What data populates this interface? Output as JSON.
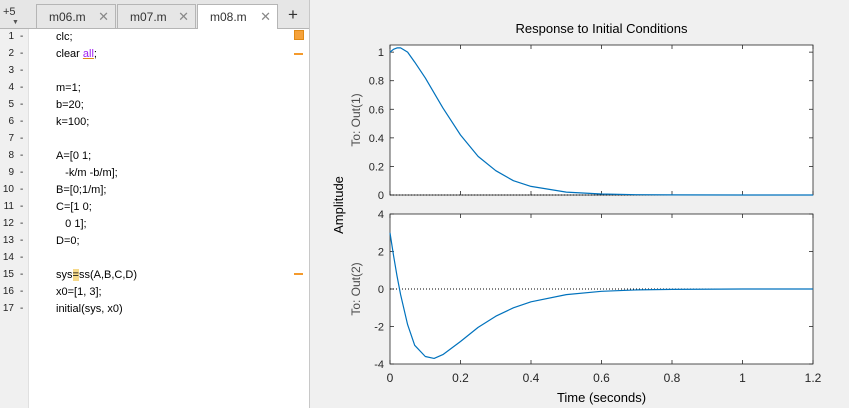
{
  "editor": {
    "overflow_tab": "+5",
    "tabs": [
      {
        "label": "m06.m",
        "active": false
      },
      {
        "label": "m07.m",
        "active": false
      },
      {
        "label": "m08.m",
        "active": true
      }
    ],
    "add_tab": "+",
    "close_glyph": "✕",
    "lines": [
      {
        "n": "1",
        "code": "clc;"
      },
      {
        "n": "2",
        "code": "clear all;"
      },
      {
        "n": "3",
        "code": ""
      },
      {
        "n": "4",
        "code": "m=1;"
      },
      {
        "n": "5",
        "code": "b=20;"
      },
      {
        "n": "6",
        "code": "k=100;"
      },
      {
        "n": "7",
        "code": ""
      },
      {
        "n": "8",
        "code": "A=[0 1;"
      },
      {
        "n": "9",
        "code": "   -k/m -b/m];"
      },
      {
        "n": "10",
        "code": "B=[0;1/m];"
      },
      {
        "n": "11",
        "code": "C=[1 0;"
      },
      {
        "n": "12",
        "code": "   0 1];"
      },
      {
        "n": "13",
        "code": "D=0;"
      },
      {
        "n": "14",
        "code": ""
      },
      {
        "n": "15",
        "code": "sys=ss(A,B,C,D)"
      },
      {
        "n": "16",
        "code": "x0=[1, 3];"
      },
      {
        "n": "17",
        "code": "initial(sys, x0)"
      }
    ],
    "line_dash": "-",
    "warning_color": "#f49a2c"
  },
  "figure": {
    "title": "Response to Initial Conditions",
    "ylabel": "Amplitude",
    "xlabel": "Time (seconds)",
    "line_color": "#0072bd"
  },
  "chart_data": {
    "type": "line",
    "title": "Response to Initial Conditions",
    "xlabel": "Time (seconds)",
    "ylabel": "Amplitude",
    "x_ticks": [
      "0",
      "0.2",
      "0.4",
      "0.6",
      "0.8",
      "1",
      "1.2"
    ],
    "xlim": [
      0,
      1.2
    ],
    "grid": false,
    "subplots": [
      {
        "ylabel": "To: Out(1)",
        "ylim": [
          0,
          1.05
        ],
        "y_ticks": [
          "0",
          "0.2",
          "0.4",
          "0.6",
          "0.8",
          "1"
        ],
        "series": [
          {
            "x": [
              0,
              0.01,
              0.02,
              0.03,
              0.05,
              0.07,
              0.1,
              0.15,
              0.2,
              0.25,
              0.3,
              0.35,
              0.4,
              0.5,
              0.6,
              0.7,
              0.8,
              1.0,
              1.2
            ],
            "y": [
              1,
              1.02,
              1.03,
              1.03,
              1.0,
              0.93,
              0.82,
              0.61,
              0.42,
              0.27,
              0.17,
              0.1,
              0.06,
              0.02,
              0.007,
              0.002,
              0.001,
              0,
              0
            ]
          }
        ]
      },
      {
        "ylabel": "To: Out(2)",
        "ylim": [
          -4,
          4
        ],
        "y_ticks": [
          "-4",
          "-2",
          "0",
          "2",
          "4"
        ],
        "series": [
          {
            "x": [
              0,
              0.01,
              0.02,
              0.03,
              0.05,
              0.07,
              0.1,
              0.125,
              0.15,
              0.2,
              0.25,
              0.3,
              0.35,
              0.4,
              0.5,
              0.6,
              0.7,
              0.8,
              1.0,
              1.2
            ],
            "y": [
              3,
              1.8,
              0.7,
              -0.3,
              -1.9,
              -3.0,
              -3.6,
              -3.7,
              -3.5,
              -2.8,
              -2.05,
              -1.45,
              -1.0,
              -0.68,
              -0.3,
              -0.12,
              -0.05,
              -0.02,
              0,
              0
            ]
          }
        ]
      }
    ]
  }
}
